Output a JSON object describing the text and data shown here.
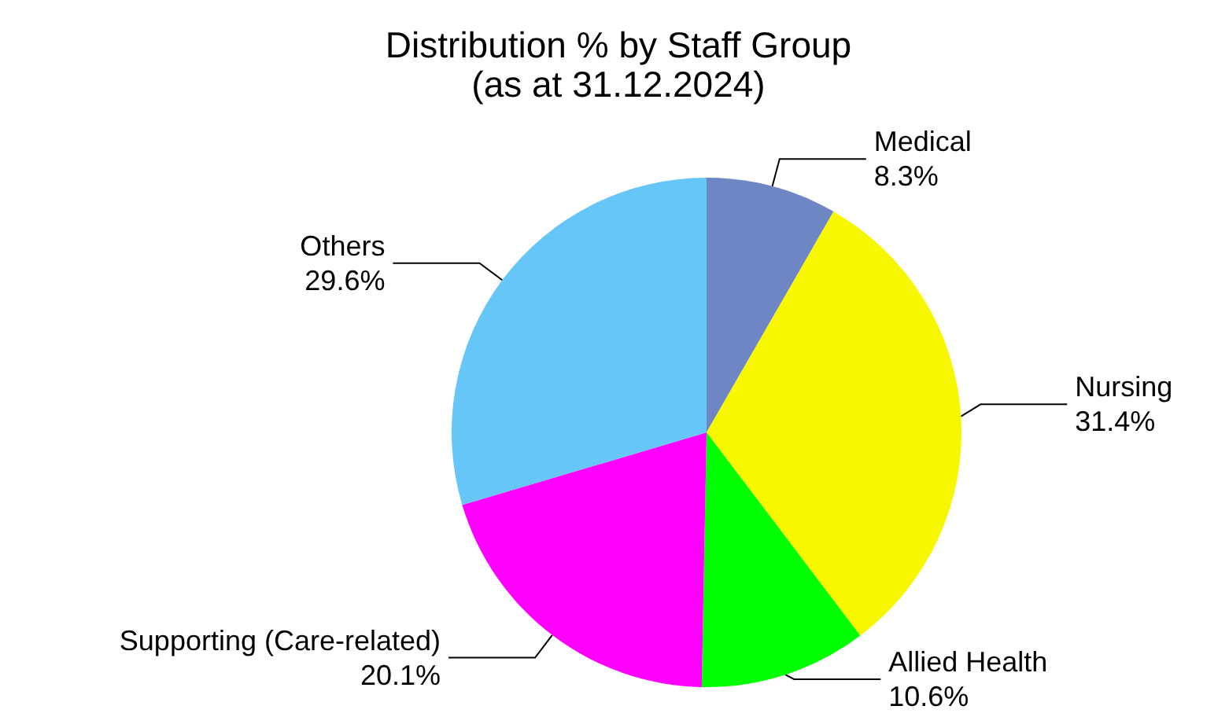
{
  "chart_data": {
    "type": "pie",
    "title": "Distribution % by Staff Group",
    "subtitle": "(as at 31.12.2024)",
    "categories": [
      "Medical",
      "Nursing",
      "Allied Health",
      "Supporting (Care-related)",
      "Others"
    ],
    "values": [
      8.3,
      31.4,
      10.6,
      20.1,
      29.6
    ],
    "value_labels": [
      "8.3%",
      "31.4%",
      "10.6%",
      "20.1%",
      "29.6%"
    ],
    "colors": [
      "#6f86c4",
      "#f7f700",
      "#00ff00",
      "#ff00ff",
      "#66c6f7"
    ],
    "legend": false
  }
}
